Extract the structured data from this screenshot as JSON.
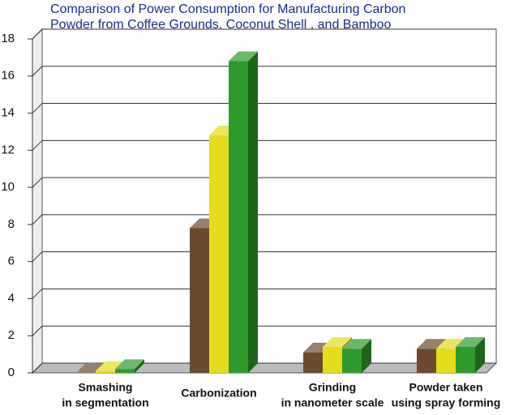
{
  "chart_data": {
    "type": "bar3d",
    "title": [
      "Comparison of Power Consumption for Manufacturing Carbon",
      "Powder from Coffee Grounds, Coconut Shell , and Bamboo"
    ],
    "categories": [
      [
        "Smashing",
        "in segmentation"
      ],
      [
        "Carbonization"
      ],
      [
        "Grinding",
        "in nanometer scale"
      ],
      [
        "Powder taken",
        "using spray forming"
      ]
    ],
    "series": [
      {
        "color": "#6b4a2e",
        "values": [
          0,
          7.8,
          1.1,
          1.3
        ]
      },
      {
        "color": "#e6dc1e",
        "values": [
          0.1,
          12.8,
          1.4,
          1.3
        ]
      },
      {
        "color": "#2f9a2c",
        "values": [
          0.2,
          16.8,
          1.3,
          1.4
        ]
      }
    ],
    "ylim": [
      0,
      18
    ],
    "yticks": [
      0,
      2,
      4,
      6,
      8,
      10,
      12,
      14,
      16,
      18
    ],
    "grid": true
  }
}
